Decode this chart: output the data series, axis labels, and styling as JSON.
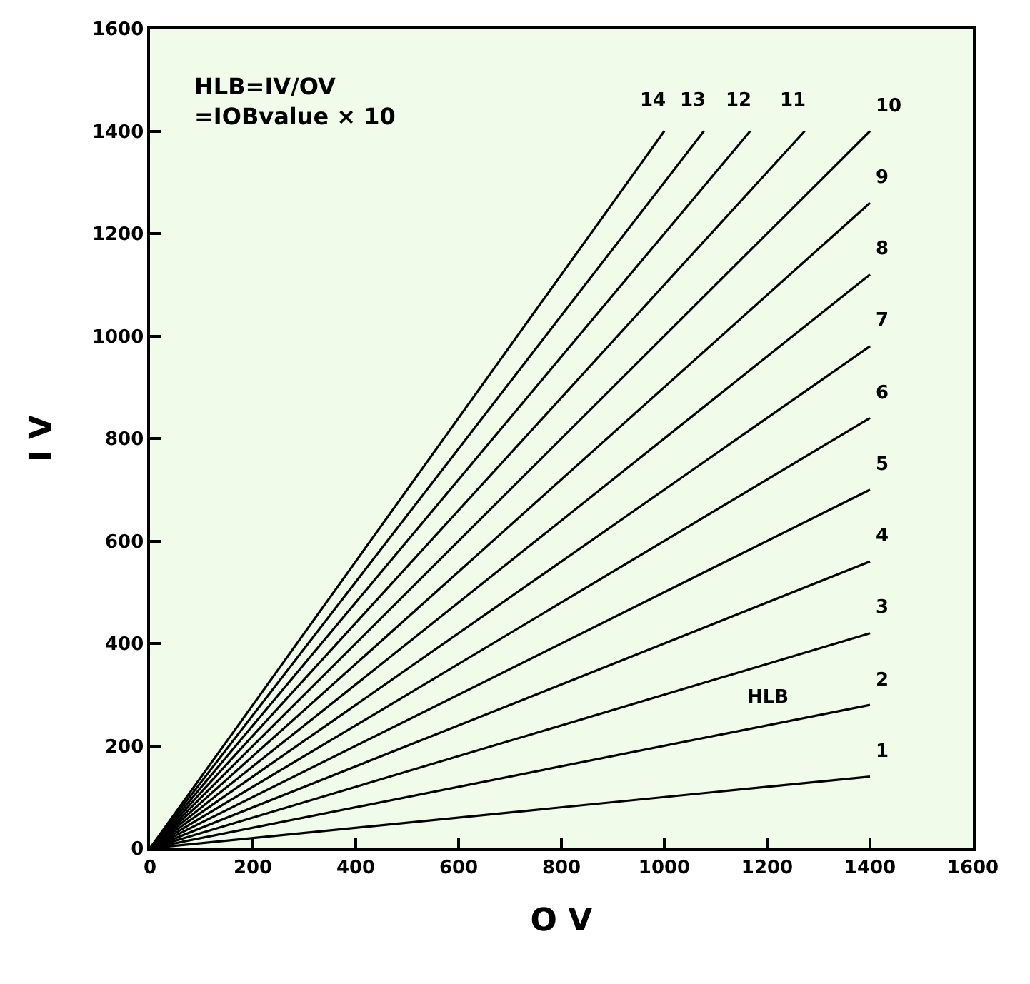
{
  "chart_data": {
    "type": "line",
    "xlabel": "O V",
    "ylabel": "I V",
    "xlim": [
      0,
      1600
    ],
    "ylim": [
      0,
      1600
    ],
    "xticks": [
      0,
      200,
      400,
      600,
      800,
      1000,
      1200,
      1400,
      1600
    ],
    "yticks": [
      0,
      200,
      400,
      600,
      800,
      1000,
      1200,
      1400,
      1600
    ],
    "grid": false,
    "legend": false,
    "marker": "none",
    "line_style": "solid",
    "annotations": [
      "HLB=IV/OV\n=IOBvalue × 10",
      "HLB"
    ],
    "series": [
      {
        "name": "1",
        "color": "#000000",
        "x": [
          0,
          1400
        ],
        "values": [
          0,
          140
        ]
      },
      {
        "name": "2",
        "color": "#000000",
        "x": [
          0,
          1400
        ],
        "values": [
          0,
          280
        ]
      },
      {
        "name": "3",
        "color": "#000000",
        "x": [
          0,
          1400
        ],
        "values": [
          0,
          420
        ]
      },
      {
        "name": "4",
        "color": "#000000",
        "x": [
          0,
          1400
        ],
        "values": [
          0,
          560
        ]
      },
      {
        "name": "5",
        "color": "#000000",
        "x": [
          0,
          1400
        ],
        "values": [
          0,
          700
        ]
      },
      {
        "name": "6",
        "color": "#000000",
        "x": [
          0,
          1400
        ],
        "values": [
          0,
          840
        ]
      },
      {
        "name": "7",
        "color": "#000000",
        "x": [
          0,
          1400
        ],
        "values": [
          0,
          980
        ]
      },
      {
        "name": "8",
        "color": "#000000",
        "x": [
          0,
          1400
        ],
        "values": [
          0,
          1120
        ]
      },
      {
        "name": "9",
        "color": "#000000",
        "x": [
          0,
          1400
        ],
        "values": [
          0,
          1260
        ]
      },
      {
        "name": "10",
        "color": "#000000",
        "x": [
          0,
          1400
        ],
        "values": [
          0,
          1400
        ]
      },
      {
        "name": "11",
        "color": "#000000",
        "x": [
          0,
          1273
        ],
        "values": [
          0,
          1400
        ]
      },
      {
        "name": "12",
        "color": "#000000",
        "x": [
          0,
          1167
        ],
        "values": [
          0,
          1400
        ]
      },
      {
        "name": "13",
        "color": "#000000",
        "x": [
          0,
          1077
        ],
        "values": [
          0,
          1400
        ]
      },
      {
        "name": "14",
        "color": "#000000",
        "x": [
          0,
          1000
        ],
        "values": [
          0,
          1400
        ]
      }
    ]
  }
}
